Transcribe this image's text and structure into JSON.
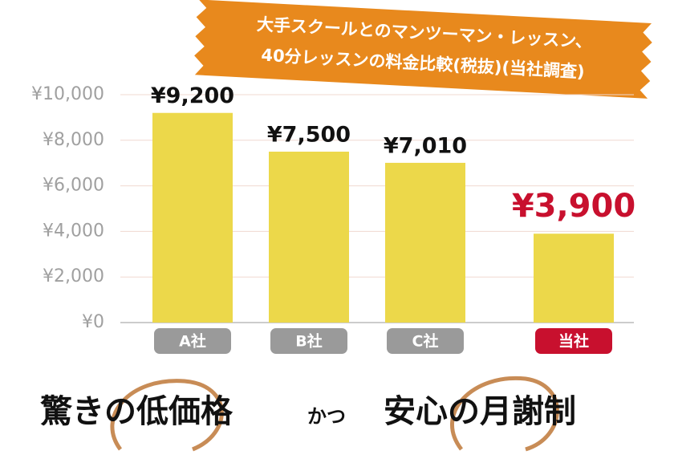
{
  "chart_data": {
    "type": "bar",
    "title": [
      "大手スクールとのマンツーマン・レッスン、",
      "40分レッスンの料金比較(税抜)(当社調査)"
    ],
    "categories": [
      "A社",
      "B社",
      "C社",
      "当社"
    ],
    "values": [
      9200,
      7500,
      7010,
      3900
    ],
    "value_labels": [
      "¥9,200",
      "¥7,500",
      "¥7,010",
      "¥3,900"
    ],
    "value_label_colors": [
      "#111111",
      "#111111",
      "#111111",
      "#c8102e"
    ],
    "category_colors": [
      "#9a9a9a",
      "#9a9a9a",
      "#9a9a9a",
      "#c8102e"
    ],
    "color": "#ecd84a",
    "ylim": [
      0,
      10000
    ],
    "yticks": [
      {
        "value": 0,
        "label": "¥0"
      },
      {
        "value": 2000,
        "label": "¥2,000"
      },
      {
        "value": 4000,
        "label": "¥4,000"
      },
      {
        "value": 6000,
        "label": "¥6,000"
      },
      {
        "value": 8000,
        "label": "¥8,000"
      },
      {
        "value": 10000,
        "label": "¥10,000"
      }
    ],
    "grid": true
  },
  "slogan": [
    "驚きの低価格",
    "かつ",
    "安心の月謝制"
  ]
}
